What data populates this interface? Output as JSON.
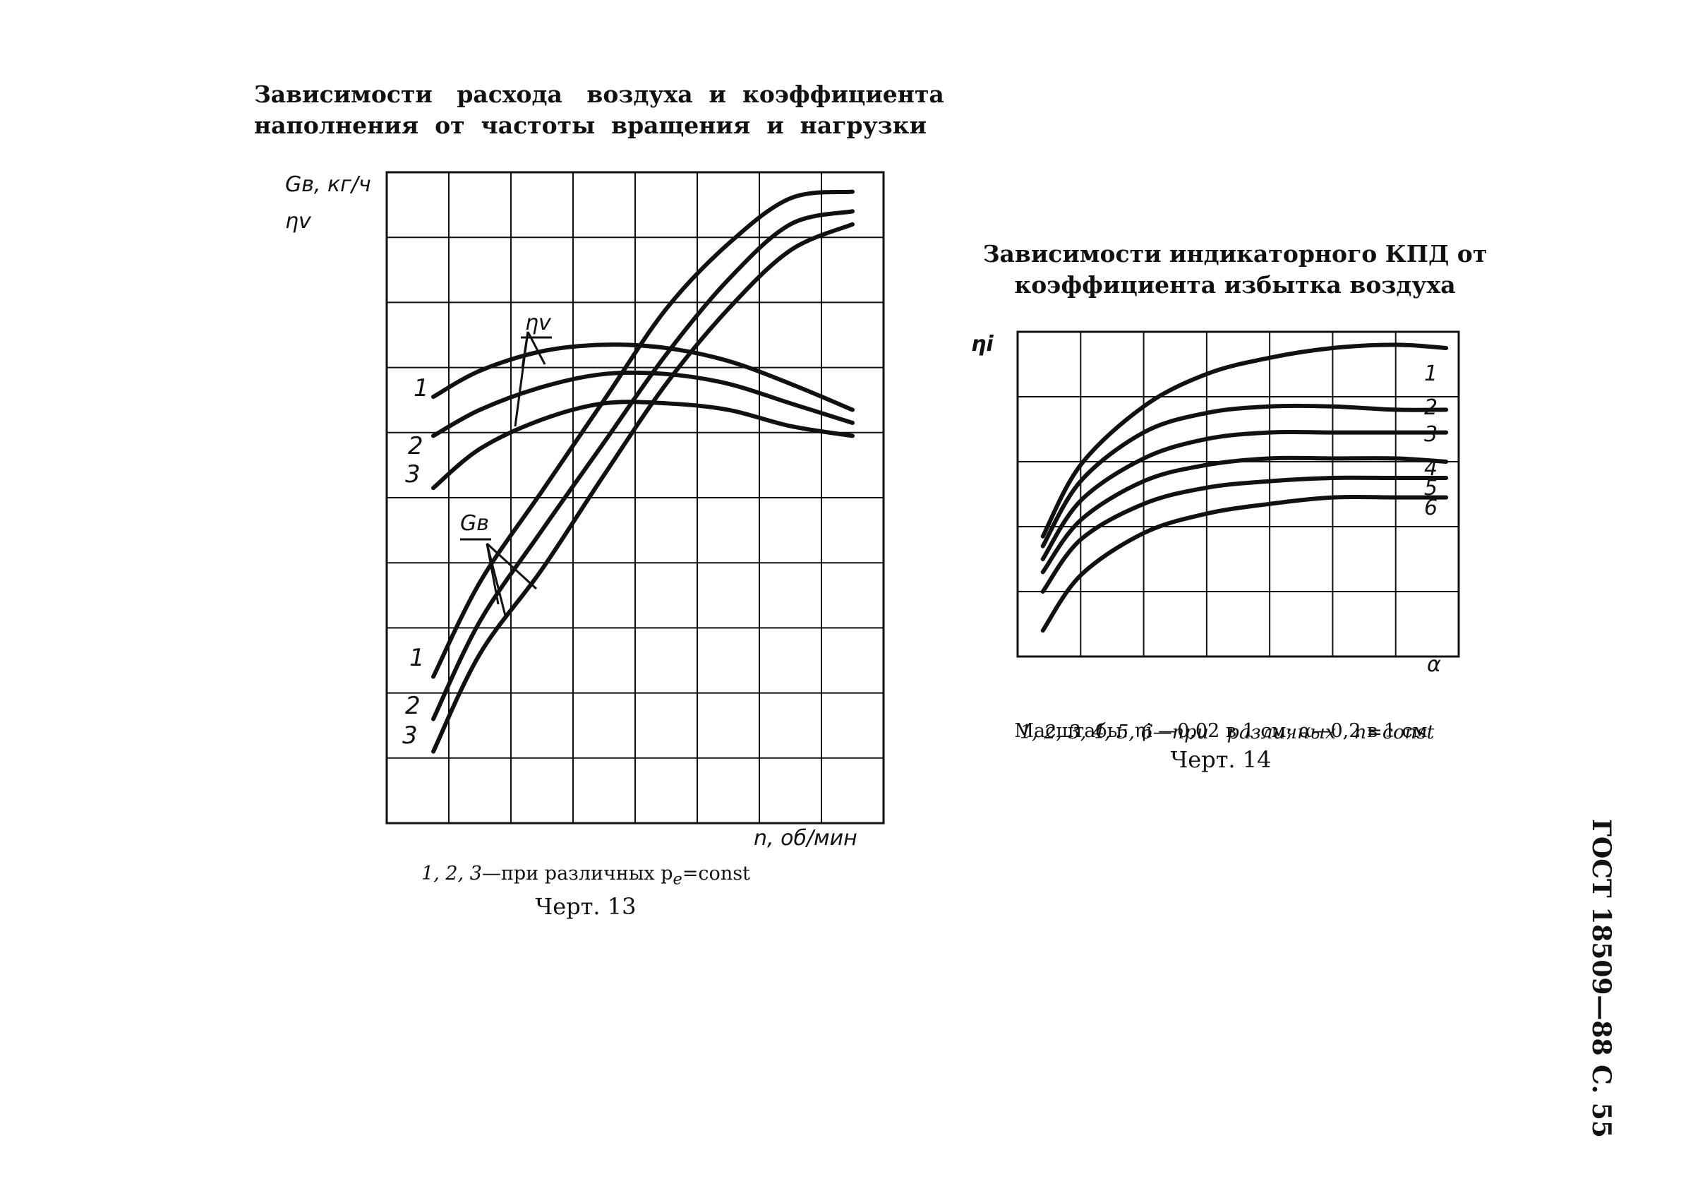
{
  "chart13": {
    "title_line1": "Зависимости   расхода   воздуха  и  коэффициента",
    "title_line2": "наполнения  от  частоты  вращения  и  нагрузки",
    "ylabel_gb": "Gв, кг/ч",
    "ylabel_eta": "ηv",
    "xlabel": "n, об/мин",
    "eta_label": "ηv",
    "gb_label": "Gв",
    "eta_curve_nums": [
      "1",
      "2",
      "3"
    ],
    "gb_curve_nums": [
      "1",
      "2",
      "3"
    ],
    "caption_prefix": "1, 2, 3",
    "caption_text": "—при различных p",
    "caption_sub": "e",
    "caption_suffix": "=const",
    "fig_label": "Черт. 13"
  },
  "chart14": {
    "title_line1": "Зависимости индикаторного КПД от",
    "title_line2": "коэффициента избытка воздуха",
    "ylabel": "ηi",
    "xlabel": "α",
    "curve_nums": [
      "1",
      "2",
      "3",
      "4",
      "5",
      "6"
    ],
    "caption_line1_prefix": "1, 2, 3, 4, 5, 6",
    "caption_line1_text": "—при   различных   n=const",
    "caption_line2": "Масштабы: ηi —0,02 в 1 см; α—0,2 в 1 см",
    "fig_label": "Черт. 14"
  },
  "side_text": "ГОСТ 18509—88 С. 55",
  "chart_data": [
    {
      "type": "line",
      "title": "Зависимости расхода воздуха и коэффициента наполнения от частоты вращения и нагрузки",
      "xlabel": "n, об/мин",
      "ylabel": "Gв, кг/ч; ηv",
      "grid": true,
      "x": [
        0.75,
        1.5,
        2.5,
        3.5,
        4.5,
        5.5,
        6.5,
        7.5
      ],
      "series": [
        {
          "name": "ηv 1",
          "values": [
            6.55,
            6.95,
            7.25,
            7.35,
            7.3,
            7.1,
            6.75,
            6.35
          ]
        },
        {
          "name": "ηv 2",
          "values": [
            5.95,
            6.35,
            6.7,
            6.9,
            6.9,
            6.75,
            6.45,
            6.15
          ]
        },
        {
          "name": "ηv 3",
          "values": [
            5.15,
            5.75,
            6.2,
            6.45,
            6.45,
            6.35,
            6.1,
            5.95
          ]
        },
        {
          "name": "Gв 1",
          "values": [
            2.25,
            3.7,
            5.1,
            6.5,
            7.9,
            8.9,
            9.6,
            9.7
          ]
        },
        {
          "name": "Gв 2",
          "values": [
            1.6,
            3.1,
            4.5,
            5.85,
            7.2,
            8.35,
            9.2,
            9.4
          ]
        },
        {
          "name": "Gв 3",
          "values": [
            1.1,
            2.6,
            3.9,
            5.35,
            6.75,
            7.9,
            8.8,
            9.2
          ]
        }
      ]
    },
    {
      "type": "line",
      "title": "Зависимости индикаторного КПД от коэффициента избытка воздуха",
      "xlabel": "α",
      "ylabel": "ηi",
      "grid": true,
      "x": [
        0.4,
        1,
        2,
        3,
        4,
        5,
        6,
        6.8
      ],
      "series": [
        {
          "name": "1",
          "values": [
            1.85,
            2.95,
            3.85,
            4.35,
            4.6,
            4.75,
            4.8,
            4.75
          ]
        },
        {
          "name": "2",
          "values": [
            1.7,
            2.7,
            3.45,
            3.75,
            3.85,
            3.85,
            3.8,
            3.8
          ]
        },
        {
          "name": "3",
          "values": [
            1.5,
            2.4,
            3.05,
            3.35,
            3.45,
            3.45,
            3.45,
            3.45
          ]
        },
        {
          "name": "4",
          "values": [
            1.3,
            2.1,
            2.7,
            2.95,
            3.05,
            3.05,
            3.05,
            3.0
          ]
        },
        {
          "name": "5",
          "values": [
            1.0,
            1.8,
            2.35,
            2.6,
            2.7,
            2.75,
            2.75,
            2.75
          ]
        },
        {
          "name": "6",
          "values": [
            0.4,
            1.25,
            1.9,
            2.2,
            2.35,
            2.45,
            2.45,
            2.45
          ]
        }
      ]
    }
  ]
}
